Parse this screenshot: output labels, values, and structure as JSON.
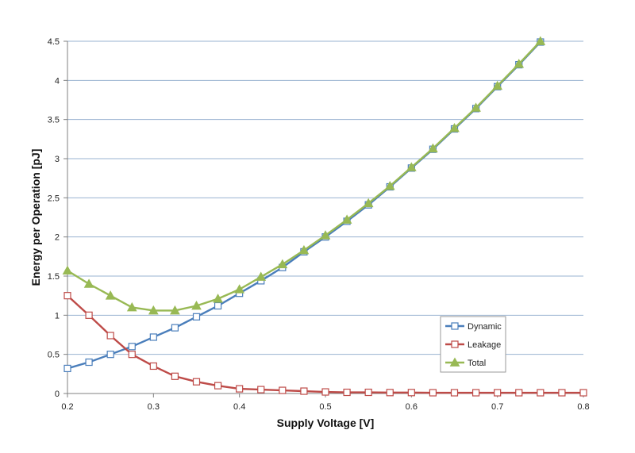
{
  "chart_data": {
    "type": "line",
    "xlabel": "Supply Voltage [V]",
    "ylabel": "Energy per Operation [pJ]",
    "xlim": [
      0.2,
      0.8
    ],
    "ylim": [
      0,
      4.5
    ],
    "xticks": [
      "0.2",
      "0.3",
      "0.4",
      "0.5",
      "0.6",
      "0.7",
      "0.8"
    ],
    "yticks": [
      "0",
      "0.5",
      "1",
      "1.5",
      "2",
      "2.5",
      "3",
      "3.5",
      "4",
      "4.5"
    ],
    "grid": "horizontal",
    "legend_position": "bottom-right",
    "series": [
      {
        "name": "Dynamic",
        "color": "#4a7ebb",
        "marker": "square",
        "x": [
          0.2,
          0.225,
          0.25,
          0.275,
          0.3,
          0.325,
          0.35,
          0.375,
          0.4,
          0.425,
          0.45,
          0.475,
          0.5,
          0.525,
          0.55,
          0.575,
          0.6,
          0.625,
          0.65,
          0.675,
          0.7,
          0.725,
          0.75
        ],
        "values": [
          0.32,
          0.4,
          0.5,
          0.6,
          0.72,
          0.84,
          0.98,
          1.12,
          1.28,
          1.44,
          1.61,
          1.81,
          2.0,
          2.2,
          2.41,
          2.64,
          2.88,
          3.12,
          3.38,
          3.64,
          3.92,
          4.2,
          4.49
        ]
      },
      {
        "name": "Leakage",
        "color": "#be4b48",
        "marker": "square",
        "x": [
          0.2,
          0.225,
          0.25,
          0.275,
          0.3,
          0.325,
          0.35,
          0.375,
          0.4,
          0.425,
          0.45,
          0.475,
          0.5,
          0.525,
          0.55,
          0.575,
          0.6,
          0.625,
          0.65,
          0.675,
          0.7,
          0.725,
          0.75,
          0.775,
          0.8
        ],
        "values": [
          1.25,
          1.0,
          0.74,
          0.5,
          0.35,
          0.22,
          0.15,
          0.1,
          0.06,
          0.05,
          0.04,
          0.03,
          0.02,
          0.015,
          0.015,
          0.012,
          0.012,
          0.01,
          0.01,
          0.01,
          0.01,
          0.01,
          0.01,
          0.01,
          0.01
        ]
      },
      {
        "name": "Total",
        "color": "#98b954",
        "marker": "triangle",
        "x": [
          0.2,
          0.225,
          0.25,
          0.275,
          0.3,
          0.325,
          0.35,
          0.375,
          0.4,
          0.425,
          0.45,
          0.475,
          0.5,
          0.525,
          0.55,
          0.575,
          0.6,
          0.625,
          0.65,
          0.675,
          0.7,
          0.725,
          0.75
        ],
        "values": [
          1.57,
          1.4,
          1.25,
          1.1,
          1.06,
          1.06,
          1.12,
          1.21,
          1.33,
          1.49,
          1.65,
          1.83,
          2.02,
          2.22,
          2.43,
          2.65,
          2.89,
          3.13,
          3.39,
          3.65,
          3.93,
          4.21,
          4.5
        ]
      }
    ]
  }
}
